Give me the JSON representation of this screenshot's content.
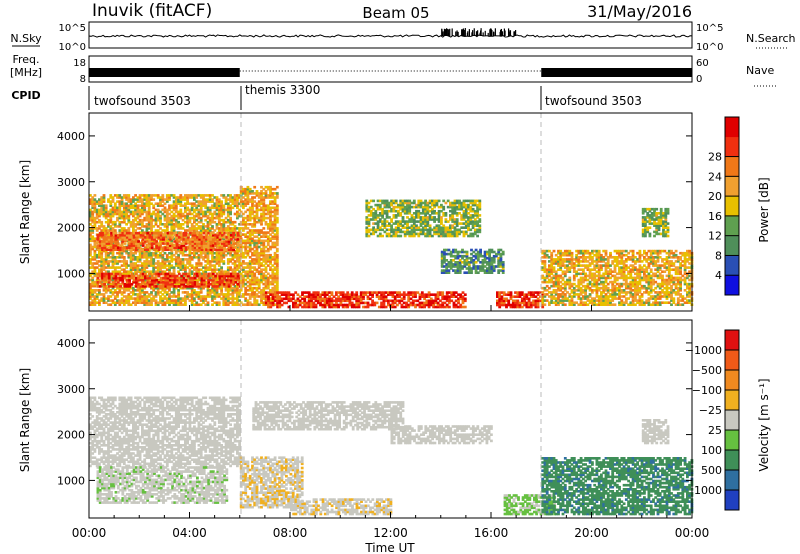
{
  "header": {
    "station": "Inuvik  (fitACF)",
    "beam": "Beam 05",
    "date": "31/May/2016"
  },
  "panels": {
    "nsky": {
      "label": "N.Sky",
      "right_label": "N.Search",
      "ticks_left": [
        "10^5",
        "10^0"
      ],
      "ticks_right": [
        "10^5",
        "10^0"
      ]
    },
    "freq": {
      "label_line1": "Freq.",
      "label_line2": "[MHz]",
      "right_label": "Nave",
      "ticks_left": [
        "18",
        "8"
      ],
      "ticks_right": [
        "60",
        "0"
      ]
    },
    "cpid": {
      "label": "CPID",
      "modes": [
        {
          "name": "twofsound 3503",
          "start_h": 0,
          "end_h": 6
        },
        {
          "name": "themis 3300",
          "start_h": 6,
          "end_h": 18
        },
        {
          "name": "twofsound 3503",
          "start_h": 18,
          "end_h": 24
        }
      ]
    }
  },
  "colorbars": {
    "power": {
      "title": "Power [dB]",
      "ticks": [
        "4",
        "8",
        "12",
        "16",
        "20",
        "24",
        "28"
      ],
      "colors": [
        "#1010e0",
        "#2a4fb5",
        "#4f8f5a",
        "#5fa050",
        "#e8c000",
        "#f0a030",
        "#f07818",
        "#f03010",
        "#e00000"
      ]
    },
    "velocity": {
      "title": "Velocity [m s⁻¹]",
      "ticks": [
        "1000",
        "500",
        "100",
        "25",
        "−25",
        "−100",
        "−500",
        "−1000"
      ],
      "colors": [
        "#2040c0",
        "#2f6fa0",
        "#3f8f58",
        "#66c040",
        "#c8c8c0",
        "#f0b020",
        "#f08a20",
        "#f05a18",
        "#e01010"
      ]
    }
  },
  "chart_data": [
    {
      "type": "heatmap",
      "title": "",
      "xlabel": "Time UT",
      "ylabel": "Slant Range [km]",
      "x_ticks": [
        "00:00",
        "04:00",
        "08:00",
        "12:00",
        "16:00",
        "20:00",
        "00:00"
      ],
      "y_ticks": [
        "1000",
        "2000",
        "3000",
        "4000"
      ],
      "xlim_hours": [
        0,
        24
      ],
      "ylim_km": [
        180,
        4500
      ],
      "colorbar": "power",
      "clim": [
        0,
        30
      ],
      "regions": [
        {
          "t0": 0.0,
          "t1": 6.0,
          "r0": 300,
          "r1": 2700,
          "z": 17
        },
        {
          "t0": 0.3,
          "t1": 6.0,
          "r0": 700,
          "r1": 1000,
          "z": 25
        },
        {
          "t0": 0.3,
          "t1": 6.0,
          "r0": 1500,
          "r1": 1900,
          "z": 22
        },
        {
          "t0": 6.0,
          "t1": 7.5,
          "r0": 300,
          "r1": 2900,
          "z": 18
        },
        {
          "t0": 7.0,
          "t1": 15.0,
          "r0": 250,
          "r1": 600,
          "z": 26
        },
        {
          "t0": 11.0,
          "t1": 15.5,
          "r0": 1800,
          "r1": 2600,
          "z": 12
        },
        {
          "t0": 14.0,
          "t1": 16.5,
          "r0": 1000,
          "r1": 1500,
          "z": 9
        },
        {
          "t0": 16.2,
          "t1": 18.0,
          "r0": 250,
          "r1": 600,
          "z": 26
        },
        {
          "t0": 18.0,
          "t1": 24.0,
          "r0": 300,
          "r1": 1500,
          "z": 17
        },
        {
          "t0": 22.0,
          "t1": 23.0,
          "r0": 1800,
          "r1": 2400,
          "z": 12
        }
      ]
    },
    {
      "type": "heatmap",
      "title": "",
      "xlabel": "Time UT",
      "ylabel": "Slant Range [km]",
      "x_ticks": [
        "00:00",
        "04:00",
        "08:00",
        "12:00",
        "16:00",
        "20:00",
        "00:00"
      ],
      "y_ticks": [
        "1000",
        "2000",
        "3000",
        "4000"
      ],
      "xlim_hours": [
        0,
        24
      ],
      "ylim_km": [
        180,
        4500
      ],
      "colorbar": "velocity",
      "clim": [
        -1000,
        1000
      ],
      "regions": [
        {
          "t0": 0.0,
          "t1": 6.0,
          "r0": 1300,
          "r1": 2800,
          "z": 0
        },
        {
          "t0": 0.3,
          "t1": 5.5,
          "r0": 500,
          "r1": 1300,
          "z": -60
        },
        {
          "t0": 6.0,
          "t1": 8.5,
          "r0": 400,
          "r1": 1500,
          "z": 80
        },
        {
          "t0": 6.5,
          "t1": 12.5,
          "r0": 2100,
          "r1": 2700,
          "z": 0
        },
        {
          "t0": 8.0,
          "t1": 12.0,
          "r0": 250,
          "r1": 600,
          "z": 70
        },
        {
          "t0": 12.0,
          "t1": 16.0,
          "r0": 1800,
          "r1": 2200,
          "z": 0
        },
        {
          "t0": 16.5,
          "t1": 18.5,
          "r0": 250,
          "r1": 700,
          "z": -150
        },
        {
          "t0": 18.0,
          "t1": 24.0,
          "r0": 250,
          "r1": 1500,
          "z": -500
        },
        {
          "t0": 22.0,
          "t1": 23.0,
          "r0": 1800,
          "r1": 2300,
          "z": 0
        }
      ]
    }
  ]
}
